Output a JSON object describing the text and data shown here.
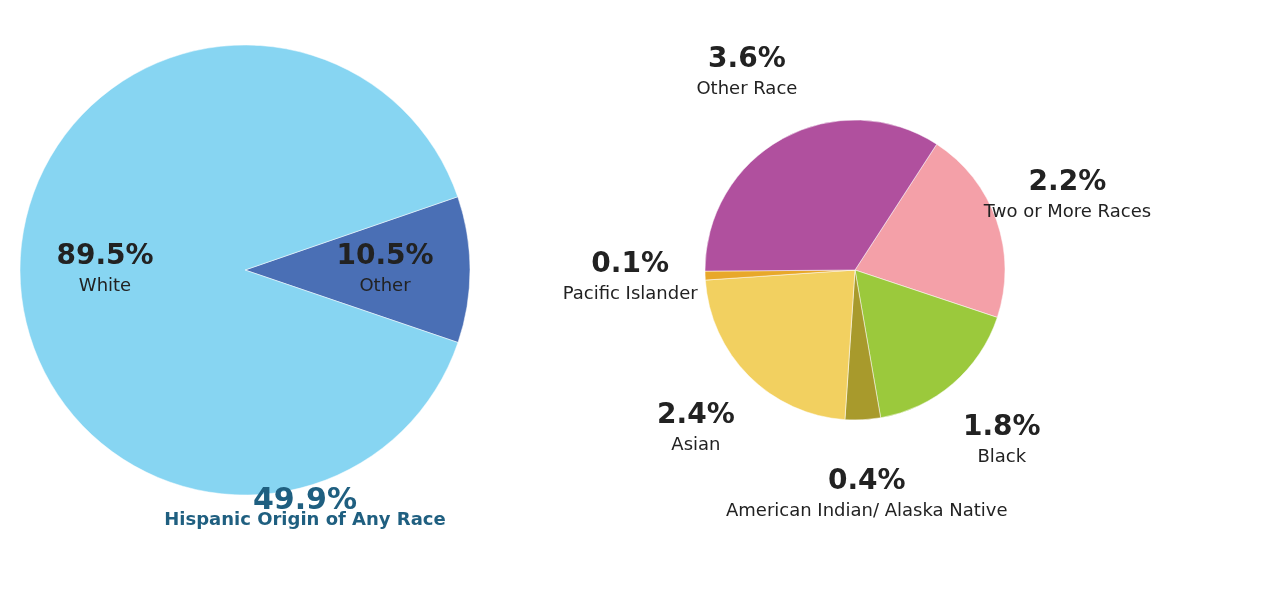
{
  "chart_data": [
    {
      "type": "pie",
      "categories": [
        "Other",
        "White"
      ],
      "values": [
        10.5,
        89.5
      ],
      "colors": [
        "#4a6fb5",
        "#87d5f2"
      ],
      "value_labels": [
        "10.5%",
        "89.5%"
      ],
      "annotations": [
        "49.9%",
        "Hispanic Origin of Any Race"
      ]
    },
    {
      "type": "pie",
      "categories": [
        "Two or More Races",
        "Black",
        "American Indian/ Alaska Native",
        "Asian",
        "Pacific Islander",
        "Other Race"
      ],
      "values": [
        2.2,
        1.8,
        0.4,
        2.4,
        0.1,
        3.6
      ],
      "colors": [
        "#f4a0a8",
        "#9bc93c",
        "#a89a2c",
        "#f2d060",
        "#e8a82a",
        "#b0509e"
      ],
      "value_labels": [
        "2.2%",
        "1.8%",
        "0.4%",
        "2.4%",
        "0.1%",
        "3.6%"
      ]
    }
  ]
}
